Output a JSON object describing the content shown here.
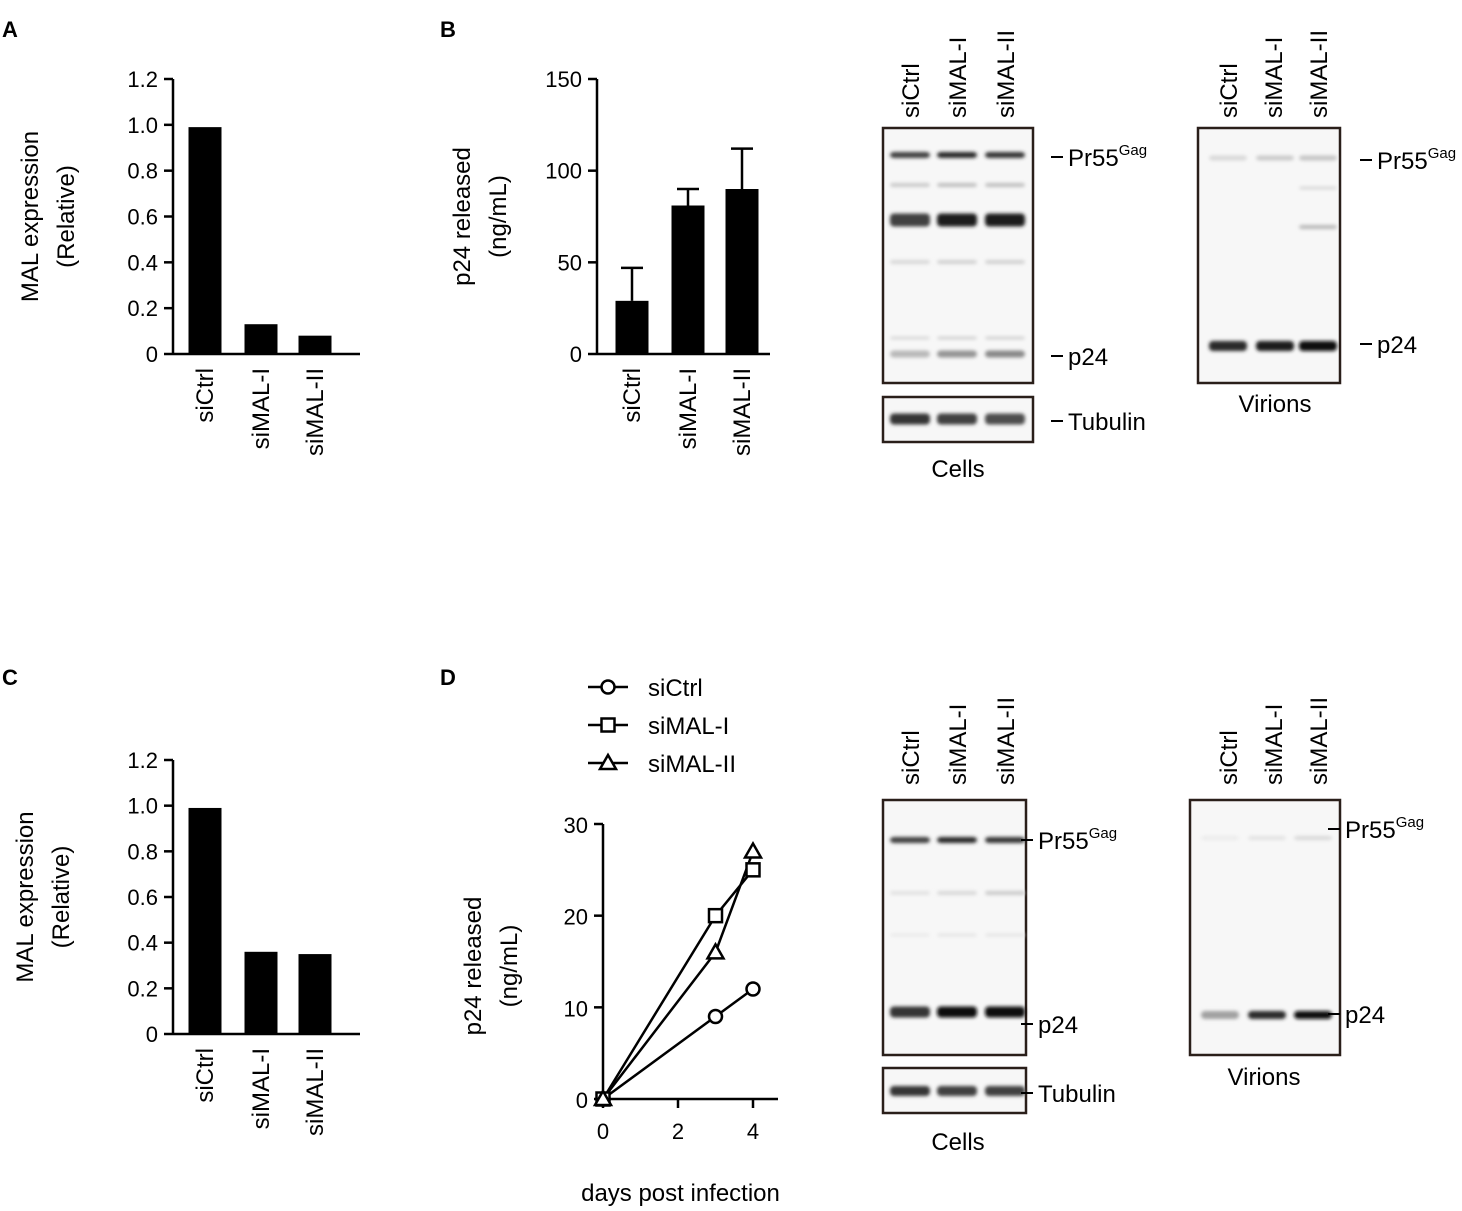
{
  "panels": [
    {
      "id": "A",
      "label": "A"
    },
    {
      "id": "B",
      "label": "B"
    },
    {
      "id": "C",
      "label": "C"
    },
    {
      "id": "D",
      "label": "D"
    }
  ],
  "chart_data": [
    {
      "panel": "A",
      "type": "bar",
      "categories": [
        "siCtrl",
        "siMAL-I",
        "siMAL-II"
      ],
      "values": [
        0.99,
        0.13,
        0.08
      ],
      "xlabel": "",
      "ylabel": "MAL expression (Relative)",
      "ylabel_lines": [
        "MAL expression",
        "(Relative)"
      ],
      "ylim": [
        0,
        1.2
      ],
      "yticks": [
        "0",
        "0.2",
        "0.4",
        "0.6",
        "0.8",
        "1.0",
        "1.2"
      ],
      "color": "#000000"
    },
    {
      "panel": "B",
      "type": "bar",
      "categories": [
        "siCtrl",
        "siMAL-I",
        "siMAL-II"
      ],
      "values": [
        29,
        81,
        90
      ],
      "errors": [
        18,
        9,
        22
      ],
      "xlabel": "",
      "ylabel": "p24 released (ng/mL)",
      "ylabel_lines": [
        "p24 released",
        "(ng/mL)"
      ],
      "ylim": [
        0,
        150
      ],
      "yticks": [
        "0",
        "50",
        "100",
        "150"
      ],
      "color": "#000000"
    },
    {
      "panel": "C",
      "type": "bar",
      "categories": [
        "siCtrl",
        "siMAL-I",
        "siMAL-II"
      ],
      "values": [
        0.99,
        0.36,
        0.35
      ],
      "xlabel": "",
      "ylabel": "MAL expression (Relative)",
      "ylabel_lines": [
        "MAL expression",
        "(Relative)"
      ],
      "ylim": [
        0,
        1.2
      ],
      "yticks": [
        "0",
        "0.2",
        "0.4",
        "0.6",
        "0.8",
        "1.0",
        "1.2"
      ],
      "color": "#000000"
    },
    {
      "panel": "D",
      "type": "line",
      "x": [
        0,
        3,
        4
      ],
      "series": [
        {
          "name": "siCtrl",
          "marker": "circle",
          "values": [
            0,
            9,
            12
          ]
        },
        {
          "name": "siMAL-I",
          "marker": "square",
          "values": [
            0,
            20,
            25
          ]
        },
        {
          "name": "siMAL-II",
          "marker": "triangle",
          "values": [
            0,
            16,
            27
          ]
        }
      ],
      "xlabel": "days post infection",
      "ylabel": "p24 released (ng/mL)",
      "ylabel_lines": [
        "p24 released",
        "(ng/mL)"
      ],
      "xlim": [
        0,
        4
      ],
      "ylim": [
        0,
        30
      ],
      "xticks": [
        "0",
        "2",
        "4"
      ],
      "yticks": [
        "0",
        "10",
        "20",
        "30"
      ],
      "legend_position": "top-left"
    }
  ],
  "blots": [
    {
      "panel": "B",
      "lanes": [
        "siCtrl",
        "siMAL-I",
        "siMAL-II"
      ],
      "cells": {
        "bands": [
          {
            "name": "Pr55",
            "sup": "Gag",
            "intensity": [
              0.75,
              0.85,
              0.8
            ]
          },
          {
            "name": "",
            "sup": "",
            "intensity": [
              0.75,
              0.9,
              0.9
            ]
          },
          {
            "name": "p24",
            "sup": "",
            "intensity": [
              0.25,
              0.4,
              0.45
            ]
          }
        ],
        "loading": {
          "name": "Tubulin",
          "intensity": [
            0.8,
            0.75,
            0.7
          ]
        },
        "caption": "Cells"
      },
      "virions": {
        "bands": [
          {
            "name": "Pr55",
            "sup": "Gag",
            "intensity": [
              0.12,
              0.18,
              0.2
            ]
          },
          {
            "name": "p24",
            "sup": "",
            "intensity": [
              0.85,
              0.9,
              0.95
            ]
          }
        ],
        "caption": "Virions"
      }
    },
    {
      "panel": "D",
      "lanes": [
        "siCtrl",
        "siMAL-I",
        "siMAL-II"
      ],
      "cells": {
        "bands": [
          {
            "name": "Pr55",
            "sup": "Gag",
            "intensity": [
              0.75,
              0.85,
              0.8
            ]
          },
          {
            "name": "p24",
            "sup": "",
            "intensity": [
              0.8,
              0.95,
              0.95
            ]
          }
        ],
        "loading": {
          "name": "Tubulin",
          "intensity": [
            0.8,
            0.75,
            0.75
          ]
        },
        "caption": "Cells"
      },
      "virions": {
        "bands": [
          {
            "name": "Pr55",
            "sup": "Gag",
            "intensity": [
              0.04,
              0.08,
              0.12
            ]
          },
          {
            "name": "p24",
            "sup": "",
            "intensity": [
              0.35,
              0.85,
              0.95
            ]
          }
        ],
        "caption": "Virions"
      }
    }
  ]
}
